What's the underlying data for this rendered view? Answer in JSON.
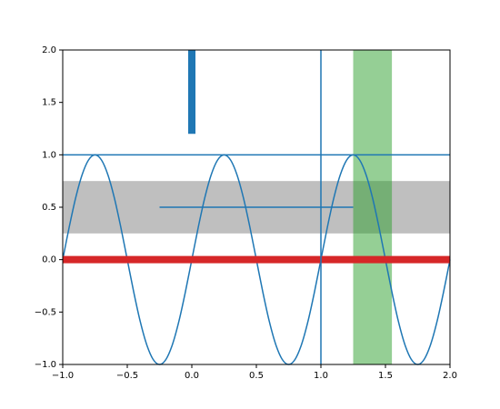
{
  "chart_data": {
    "type": "line",
    "x": [
      -1,
      -0.95,
      -0.9,
      -0.85,
      -0.8,
      -0.75,
      -0.7,
      -0.65,
      -0.6,
      -0.55,
      -0.5,
      -0.45,
      -0.4,
      -0.35,
      -0.3,
      -0.25,
      -0.2,
      -0.15,
      -0.1,
      -0.05,
      0,
      0.05,
      0.1,
      0.15,
      0.2,
      0.25,
      0.3,
      0.35,
      0.4,
      0.45,
      0.5,
      0.55,
      0.6,
      0.65,
      0.7,
      0.75,
      0.8,
      0.85,
      0.9,
      0.95,
      1,
      1.05,
      1.1,
      1.15,
      1.2,
      1.25,
      1.3,
      1.35,
      1.4,
      1.45,
      1.5,
      1.55,
      1.6,
      1.65,
      1.7,
      1.75,
      1.8,
      1.85,
      1.9,
      1.95,
      2
    ],
    "series": [
      {
        "color": "#1f77b4",
        "values": [
          0,
          0.309,
          0.588,
          0.809,
          0.951,
          1,
          0.951,
          0.809,
          0.588,
          0.309,
          0,
          -0.309,
          -0.588,
          -0.809,
          -0.951,
          -1,
          -0.951,
          -0.809,
          -0.588,
          -0.309,
          0,
          0.309,
          0.588,
          0.809,
          0.951,
          1,
          0.951,
          0.809,
          0.588,
          0.309,
          0,
          -0.309,
          -0.588,
          -0.809,
          -0.951,
          -1,
          -0.951,
          -0.809,
          -0.588,
          -0.309,
          0,
          0.309,
          0.588,
          0.809,
          0.951,
          1,
          0.951,
          0.809,
          0.588,
          0.309,
          0,
          -0.309,
          -0.588,
          -0.809,
          -0.951,
          -1,
          -0.951,
          -0.809,
          -0.588,
          -0.309,
          0
        ]
      }
    ],
    "hspans": [
      {
        "ymin": 0.25,
        "ymax": 0.75,
        "color": "#808080"
      }
    ],
    "vspans": [
      {
        "xmin": 1.25,
        "xmax": 1.55,
        "color": "#2ca02c"
      }
    ],
    "hlines": [
      {
        "y": 0,
        "color": "#d62728",
        "width": 8
      },
      {
        "y": 1,
        "color": "#1f77b4",
        "width": 1.5
      },
      {
        "y": 0.5,
        "xmin": -0.25,
        "xmax": 1.25,
        "color": "#1f77b4",
        "width": 1.5
      }
    ],
    "vlines": [
      {
        "x": 1,
        "color": "#1f77b4",
        "width": 1.5
      },
      {
        "x": 0,
        "ymin": 1.2,
        "ymax": 2,
        "color": "#1f77b4",
        "width": 8
      }
    ],
    "xlim": [
      -1,
      2
    ],
    "ylim": [
      -1,
      2
    ],
    "xticks": [
      {
        "value": -1,
        "label": "−1.0"
      },
      {
        "value": -0.5,
        "label": "−0.5"
      },
      {
        "value": 0,
        "label": "0.0"
      },
      {
        "value": 0.5,
        "label": "0.5"
      },
      {
        "value": 1,
        "label": "1.0"
      },
      {
        "value": 1.5,
        "label": "1.5"
      },
      {
        "value": 2,
        "label": "2.0"
      }
    ],
    "yticks": [
      {
        "value": -1,
        "label": "−1.0"
      },
      {
        "value": -0.5,
        "label": "−0.5"
      },
      {
        "value": 0,
        "label": "0.0"
      },
      {
        "value": 0.5,
        "label": "0.5"
      },
      {
        "value": 1,
        "label": "1.0"
      },
      {
        "value": 1.5,
        "label": "1.5"
      },
      {
        "value": 2,
        "label": "2.0"
      }
    ]
  }
}
